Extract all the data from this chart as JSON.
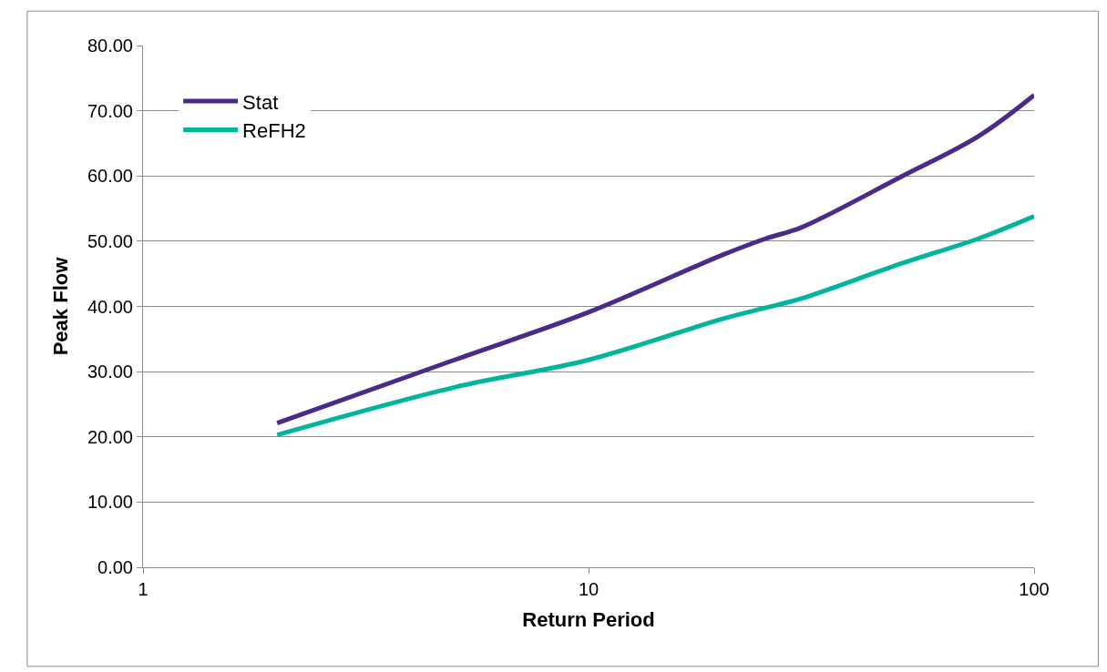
{
  "chart_data": {
    "type": "line",
    "xlabel": "Return Period",
    "ylabel": "Peak Flow",
    "log": "x",
    "xlim": [
      1,
      100
    ],
    "xticks": [
      1,
      10,
      100
    ],
    "ylim": [
      0,
      80
    ],
    "yticks": [
      {
        "value": 0,
        "label": "0.00"
      },
      {
        "value": 10,
        "label": "10.00"
      },
      {
        "value": 20,
        "label": "20.00"
      },
      {
        "value": 30,
        "label": "30.00"
      },
      {
        "value": 40,
        "label": "40.00"
      },
      {
        "value": 50,
        "label": "50.00"
      },
      {
        "value": 60,
        "label": "60.00"
      },
      {
        "value": 70,
        "label": "70.00"
      },
      {
        "value": 80,
        "label": "80.00"
      }
    ],
    "x": [
      2,
      5,
      10,
      20,
      25,
      30,
      50,
      75,
      100
    ],
    "series": [
      {
        "name": "Stat",
        "color": "#4b2a8a",
        "values": [
          22.1,
          31.8,
          39.1,
          47.9,
          50.4,
          52.1,
          59.8,
          66.1,
          72.4
        ]
      },
      {
        "name": "ReFH2",
        "color": "#00b59a",
        "values": [
          20.3,
          27.6,
          31.8,
          38.1,
          39.8,
          41.2,
          46.5,
          50.4,
          53.8
        ]
      }
    ],
    "grid": "y",
    "legend": "top left",
    "marker": "none",
    "line_style": "solid"
  }
}
